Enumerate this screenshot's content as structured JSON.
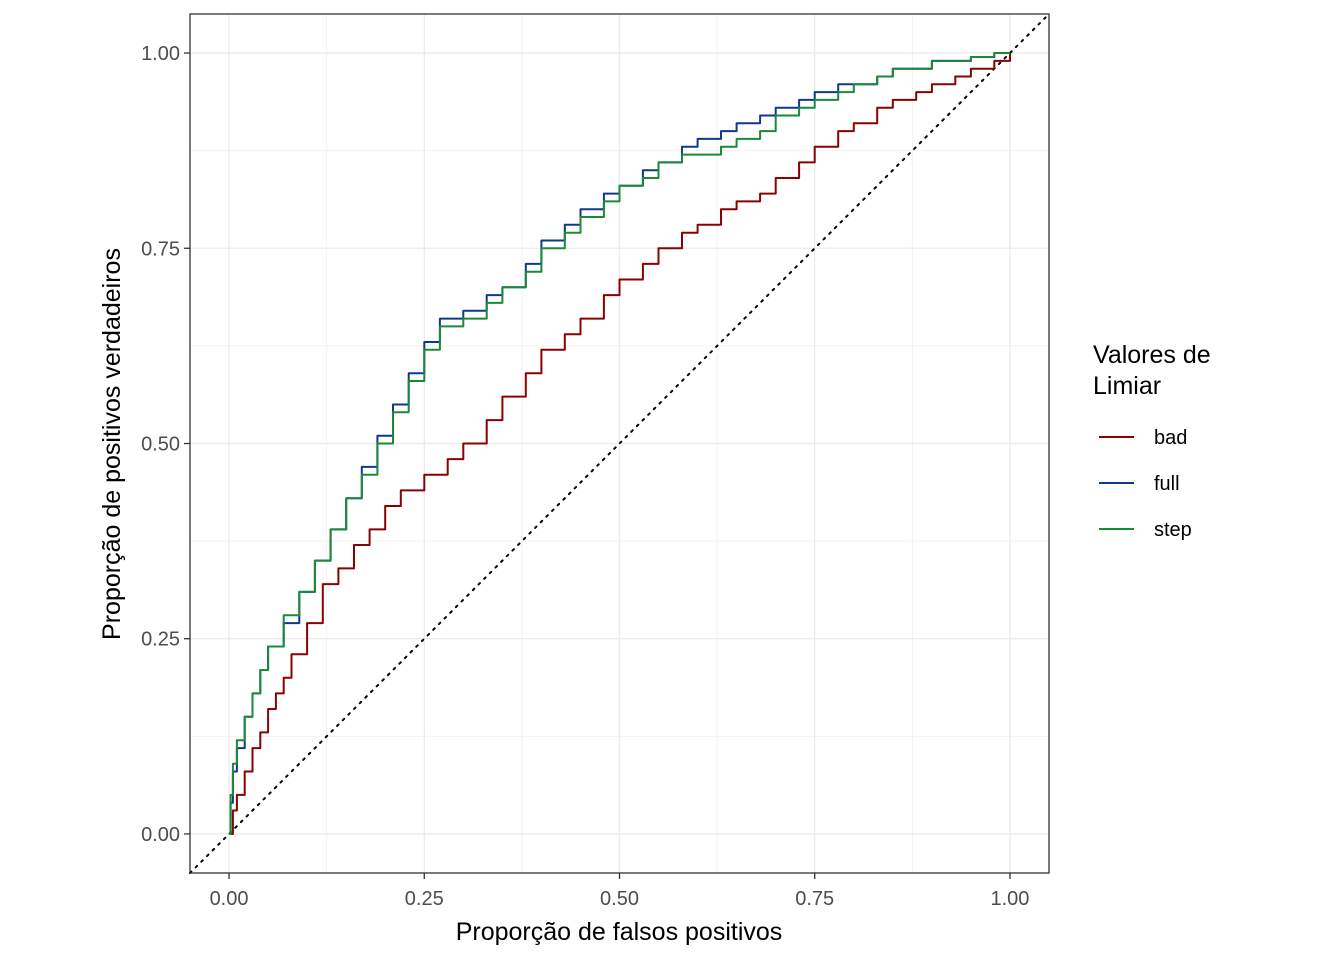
{
  "chart_data": {
    "type": "line",
    "title": "",
    "xlabel": "Proporção de falsos positivos",
    "ylabel": "Proporção de positivos verdadeiros",
    "xlim": [
      -0.05,
      1.05
    ],
    "ylim": [
      -0.05,
      1.05
    ],
    "x_ticks": [
      "0.00",
      "0.25",
      "0.50",
      "0.75",
      "1.00"
    ],
    "y_ticks": [
      "0.00",
      "0.25",
      "0.50",
      "0.75",
      "1.00"
    ],
    "grid": true,
    "legend_title_lines": [
      "Valores de",
      "Limiar"
    ],
    "legend_position": "right",
    "reference_line": {
      "style": "dotted",
      "from": [
        -0.05,
        -0.05
      ],
      "to": [
        1.05,
        1.05
      ],
      "color": "#000000"
    },
    "series": [
      {
        "name": "bad",
        "color": "#8B0000",
        "x": [
          0,
          0.005,
          0.01,
          0.02,
          0.03,
          0.04,
          0.05,
          0.06,
          0.07,
          0.08,
          0.1,
          0.12,
          0.14,
          0.16,
          0.18,
          0.2,
          0.22,
          0.25,
          0.28,
          0.3,
          0.33,
          0.35,
          0.38,
          0.4,
          0.43,
          0.45,
          0.48,
          0.5,
          0.53,
          0.55,
          0.58,
          0.6,
          0.63,
          0.65,
          0.68,
          0.7,
          0.73,
          0.75,
          0.78,
          0.8,
          0.83,
          0.85,
          0.88,
          0.9,
          0.93,
          0.95,
          0.98,
          1.0
        ],
        "y": [
          0,
          0.03,
          0.05,
          0.08,
          0.11,
          0.13,
          0.16,
          0.18,
          0.2,
          0.23,
          0.27,
          0.32,
          0.34,
          0.37,
          0.39,
          0.42,
          0.44,
          0.46,
          0.48,
          0.5,
          0.53,
          0.56,
          0.59,
          0.62,
          0.64,
          0.66,
          0.69,
          0.71,
          0.73,
          0.75,
          0.77,
          0.78,
          0.8,
          0.81,
          0.82,
          0.84,
          0.86,
          0.88,
          0.9,
          0.91,
          0.93,
          0.94,
          0.95,
          0.96,
          0.97,
          0.98,
          0.99,
          1.0
        ]
      },
      {
        "name": "full",
        "color": "#0F3A8A",
        "x": [
          0,
          0.002,
          0.005,
          0.01,
          0.02,
          0.03,
          0.04,
          0.05,
          0.07,
          0.09,
          0.11,
          0.13,
          0.15,
          0.17,
          0.19,
          0.21,
          0.23,
          0.25,
          0.27,
          0.3,
          0.33,
          0.35,
          0.38,
          0.4,
          0.43,
          0.45,
          0.48,
          0.5,
          0.53,
          0.55,
          0.58,
          0.6,
          0.63,
          0.65,
          0.68,
          0.7,
          0.73,
          0.75,
          0.78,
          0.8,
          0.83,
          0.85,
          0.88,
          0.9,
          0.93,
          0.95,
          0.98,
          1.0
        ],
        "y": [
          0,
          0.04,
          0.08,
          0.11,
          0.15,
          0.18,
          0.21,
          0.24,
          0.27,
          0.31,
          0.35,
          0.39,
          0.43,
          0.47,
          0.51,
          0.55,
          0.59,
          0.63,
          0.66,
          0.67,
          0.69,
          0.7,
          0.73,
          0.76,
          0.78,
          0.8,
          0.82,
          0.83,
          0.85,
          0.86,
          0.88,
          0.89,
          0.9,
          0.91,
          0.92,
          0.93,
          0.94,
          0.95,
          0.96,
          0.96,
          0.97,
          0.98,
          0.98,
          0.99,
          0.99,
          0.995,
          1.0,
          1.0
        ]
      },
      {
        "name": "step",
        "color": "#1A8A3A",
        "x": [
          0,
          0.002,
          0.005,
          0.01,
          0.02,
          0.03,
          0.04,
          0.05,
          0.07,
          0.09,
          0.11,
          0.13,
          0.15,
          0.17,
          0.19,
          0.21,
          0.23,
          0.25,
          0.27,
          0.3,
          0.33,
          0.35,
          0.38,
          0.4,
          0.43,
          0.45,
          0.48,
          0.5,
          0.53,
          0.55,
          0.58,
          0.6,
          0.63,
          0.65,
          0.68,
          0.7,
          0.73,
          0.75,
          0.78,
          0.8,
          0.83,
          0.85,
          0.88,
          0.9,
          0.93,
          0.95,
          0.98,
          1.0
        ],
        "y": [
          0,
          0.05,
          0.09,
          0.12,
          0.15,
          0.18,
          0.21,
          0.24,
          0.28,
          0.31,
          0.35,
          0.39,
          0.43,
          0.46,
          0.5,
          0.54,
          0.58,
          0.62,
          0.65,
          0.66,
          0.68,
          0.7,
          0.72,
          0.75,
          0.77,
          0.79,
          0.81,
          0.83,
          0.84,
          0.86,
          0.87,
          0.87,
          0.88,
          0.89,
          0.9,
          0.92,
          0.93,
          0.94,
          0.95,
          0.96,
          0.97,
          0.98,
          0.98,
          0.99,
          0.99,
          0.995,
          1.0,
          1.0
        ]
      }
    ]
  }
}
